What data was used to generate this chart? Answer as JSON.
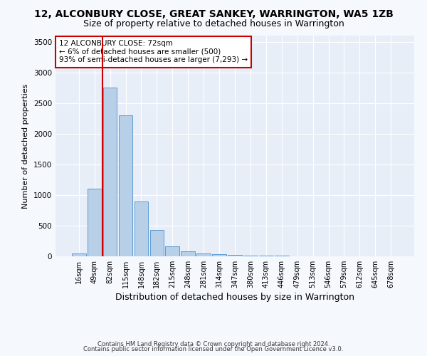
{
  "title": "12, ALCONBURY CLOSE, GREAT SANKEY, WARRINGTON, WA5 1ZB",
  "subtitle": "Size of property relative to detached houses in Warrington",
  "xlabel": "Distribution of detached houses by size in Warrington",
  "ylabel": "Number of detached properties",
  "footer1": "Contains HM Land Registry data © Crown copyright and database right 2024.",
  "footer2": "Contains public sector information licensed under the Open Government Licence v3.0.",
  "annotation_line1": "12 ALCONBURY CLOSE: 72sqm",
  "annotation_line2": "← 6% of detached houses are smaller (500)",
  "annotation_line3": "93% of semi-detached houses are larger (7,293) →",
  "categories": [
    "16sqm",
    "49sqm",
    "82sqm",
    "115sqm",
    "148sqm",
    "182sqm",
    "215sqm",
    "248sqm",
    "281sqm",
    "314sqm",
    "347sqm",
    "380sqm",
    "413sqm",
    "446sqm",
    "479sqm",
    "513sqm",
    "546sqm",
    "579sqm",
    "612sqm",
    "645sqm",
    "678sqm"
  ],
  "values": [
    50,
    1100,
    2750,
    2300,
    900,
    430,
    160,
    80,
    50,
    40,
    25,
    15,
    10,
    6,
    4,
    3,
    2,
    1,
    1,
    1,
    1
  ],
  "bar_color": "#b8cfe8",
  "bar_edge_color": "#5b9bd5",
  "red_line_color": "#cc0000",
  "red_line_x": 1.5,
  "ylim": [
    0,
    3600
  ],
  "yticks": [
    0,
    500,
    1000,
    1500,
    2000,
    2500,
    3000,
    3500
  ],
  "annotation_box_color": "#cc0000",
  "background_color": "#f5f8fd",
  "plot_background": "#e8eef8",
  "grid_color": "#d8e4f0",
  "title_fontsize": 10,
  "subtitle_fontsize": 9,
  "tick_fontsize": 7,
  "ylabel_fontsize": 8,
  "xlabel_fontsize": 9,
  "annotation_fontsize": 7.5,
  "footer_fontsize": 6
}
